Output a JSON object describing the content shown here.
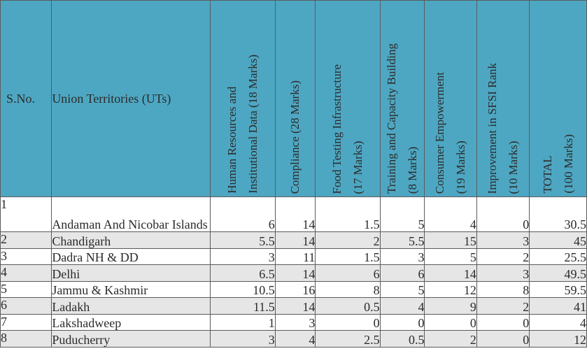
{
  "table": {
    "headers": {
      "sno": "S.No.",
      "ut": "Union Territories (UTs)",
      "hr": "Human Resources and\nInstitutional Data (18 Marks)",
      "compliance": "Compliance  (28 Marks)",
      "food": "Food Testing Infrastructure\n(17 Marks)",
      "training": "Training and Capacity Building\n(8 Marks)",
      "consumer": "Consumer Empowerment\n(19 Marks)",
      "improvement": "Improvement in SFSI Rank\n(10 Marks)",
      "total": "TOTAL\n(100 Marks)"
    },
    "rows": [
      {
        "sno": "1",
        "ut": "Andaman And Nicobar Islands",
        "hr": "6",
        "compliance": "14",
        "food": "1.5",
        "training": "5",
        "consumer": "4",
        "improvement": "0",
        "total": "30.5"
      },
      {
        "sno": "2",
        "ut": "Chandigarh",
        "hr": "5.5",
        "compliance": "14",
        "food": "2",
        "training": "5.5",
        "consumer": "15",
        "improvement": "3",
        "total": "45"
      },
      {
        "sno": "3",
        "ut": "Dadra NH & DD",
        "hr": "3",
        "compliance": "11",
        "food": "1.5",
        "training": "3",
        "consumer": "5",
        "improvement": "2",
        "total": "25.5"
      },
      {
        "sno": "4",
        "ut": "Delhi",
        "hr": "6.5",
        "compliance": "14",
        "food": "6",
        "training": "6",
        "consumer": "14",
        "improvement": "3",
        "total": "49.5"
      },
      {
        "sno": "5",
        "ut": "Jammu & Kashmir",
        "hr": "10.5",
        "compliance": "16",
        "food": "8",
        "training": "5",
        "consumer": "12",
        "improvement": "8",
        "total": "59.5"
      },
      {
        "sno": "6",
        "ut": "Ladakh",
        "hr": "11.5",
        "compliance": "14",
        "food": "0.5",
        "training": "4",
        "consumer": "9",
        "improvement": "2",
        "total": "41"
      },
      {
        "sno": "7",
        "ut": "Lakshadweep",
        "hr": "1",
        "compliance": "3",
        "food": "0",
        "training": "0",
        "consumer": "0",
        "improvement": "0",
        "total": "4"
      },
      {
        "sno": "8",
        "ut": "Puducherry",
        "hr": "3",
        "compliance": "4",
        "food": "2.5",
        "training": "0.5",
        "consumer": "2",
        "improvement": "0",
        "total": "12"
      }
    ]
  }
}
